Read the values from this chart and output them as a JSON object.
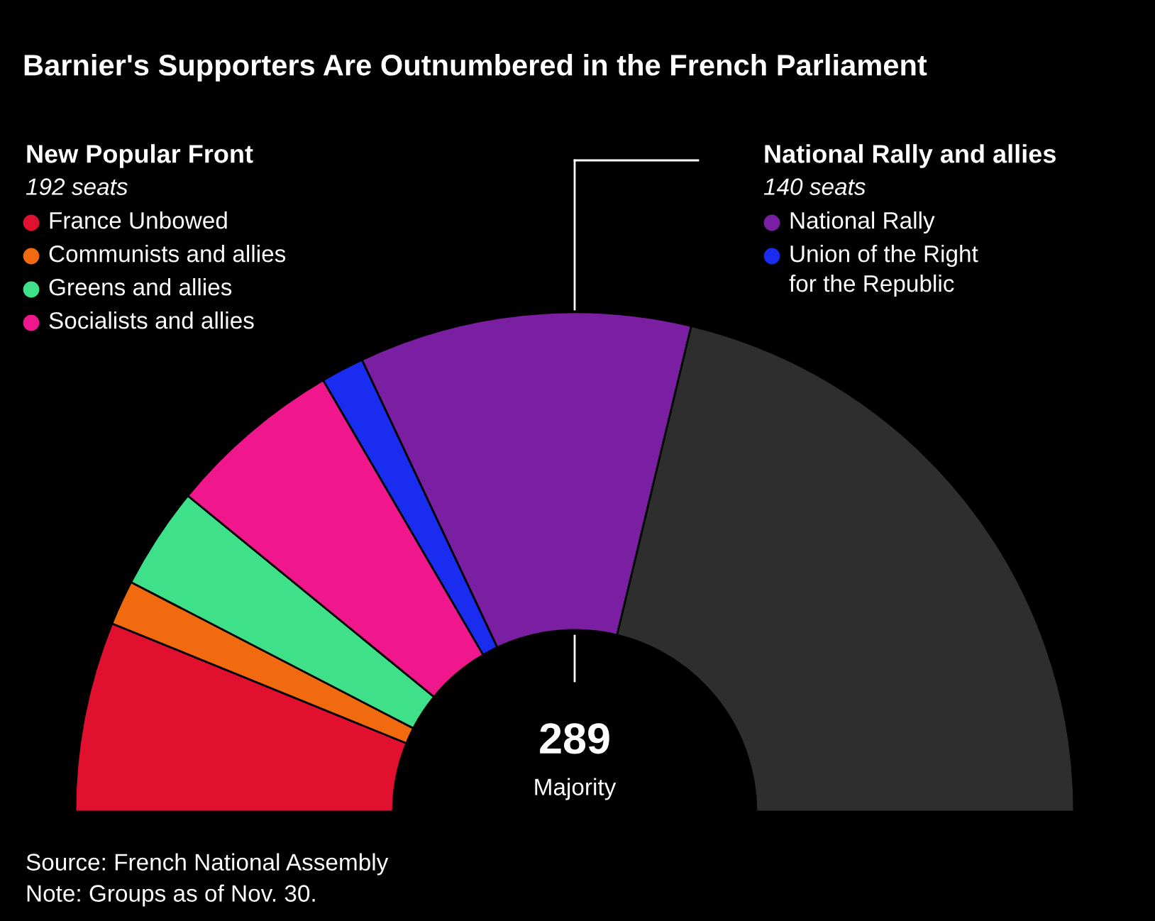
{
  "chart_data": {
    "type": "donut",
    "title": "Barnier's Supporters Are Outnumbered in the French Parliament",
    "categories": [
      "France Unbowed",
      "Communists and allies",
      "Greens and allies",
      "Socialists and allies",
      "Union of the Right\nfor the Republic",
      "National Rally",
      null
    ],
    "values": [
      12.3,
      2.9,
      6.6,
      11.4,
      2.8,
      21.5,
      42.5
    ],
    "colors": [
      "#e0102e",
      "#f26a10",
      "#3fe08a",
      "#f0168c",
      "#1a2cf0",
      "#7a1fa2",
      "#2e2e2e"
    ],
    "legend": "top",
    "annotations": [
      "New Popular Front",
      "192 seats",
      "National Rally and allies",
      "140 seats",
      "289",
      "Majority",
      "Source: French National Assembly",
      "Note: Groups as of Nov. 30."
    ]
  }
}
